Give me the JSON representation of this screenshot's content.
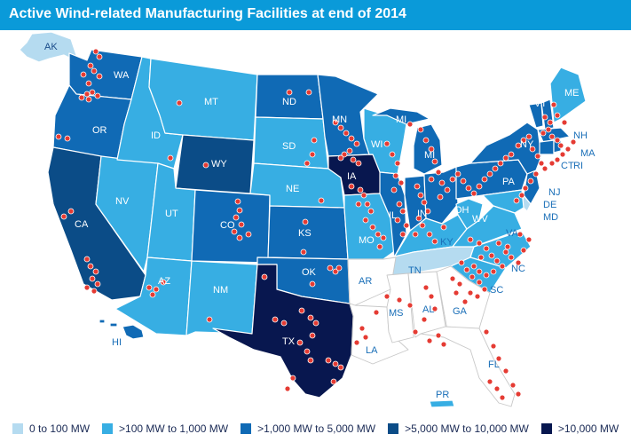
{
  "title": "Active Wind-related Manufacturing Facilities at end of 2014",
  "colors": {
    "title_bar": "#0a9ad9",
    "c0": "#b5dbf0",
    "c1": "#37aee3",
    "c2": "#106ab5",
    "c3": "#0b4c87",
    "c4": "#08174f",
    "none": "#ffffff",
    "dot": "#e53b33"
  },
  "legend": [
    {
      "label": "0 to 100 MW",
      "color_key": "c0"
    },
    {
      "label": ">100 MW to 1,000 MW",
      "color_key": "c1"
    },
    {
      "label": ">1,000 MW to 5,000 MW",
      "color_key": "c2"
    },
    {
      "label": ">5,000 MW to 10,000 MW",
      "color_key": "c3"
    },
    {
      "label": ">10,000 MW",
      "color_key": "c4"
    }
  ],
  "states": {
    "AK": "AK",
    "HI": "HI",
    "PR": "PR",
    "WA": "WA",
    "OR": "OR",
    "CA": "CA",
    "NV": "NV",
    "ID": "ID",
    "MT": "MT",
    "WY": "WY",
    "UT": "UT",
    "AZ": "AZ",
    "CO": "CO",
    "NM": "NM",
    "ND": "ND",
    "SD": "SD",
    "NE": "NE",
    "KS": "KS",
    "OK": "OK",
    "TX": "TX",
    "MN": "MN",
    "IA": "IA",
    "MO": "MO",
    "AR": "AR",
    "LA": "LA",
    "WI": "WI",
    "IL": "IL",
    "MI": "MI",
    "IN": "IN",
    "KY": "KY",
    "TN": "TN",
    "MS": "MS",
    "AL": "AL",
    "OH": "OH",
    "WV": "WV",
    "VA": "VA",
    "NC": "NC",
    "SC": "SC",
    "GA": "GA",
    "FL": "FL",
    "PA": "PA",
    "NY": "NY",
    "VT": "VT",
    "NH": "NH",
    "ME": "ME",
    "MA": "MA",
    "RI": "RI",
    "CT": "CT",
    "NJ": "NJ",
    "DE": "DE",
    "MD": "MD"
  }
}
